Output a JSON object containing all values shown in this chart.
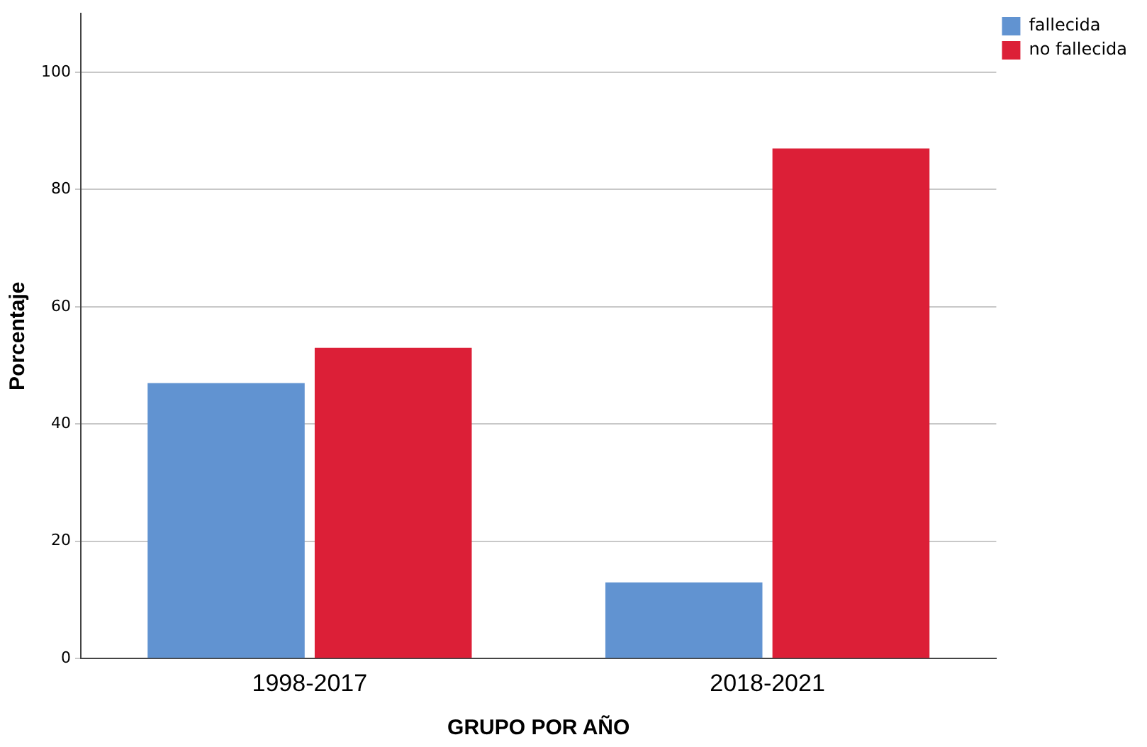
{
  "chart_data": {
    "type": "bar",
    "xlabel": "GRUPO POR AÑO",
    "ylabel": "Porcentaje",
    "categories": [
      "1998-2017",
      "2018-2021"
    ],
    "series": [
      {
        "name": "fallecida",
        "color": "#6193d1",
        "values": [
          47,
          13
        ]
      },
      {
        "name": "no fallecida",
        "color": "#dc1f37",
        "values": [
          53,
          87
        ]
      }
    ],
    "ylim": [
      0,
      110
    ],
    "yticks": [
      0,
      20,
      40,
      60,
      80,
      100
    ],
    "grid": "y",
    "legend": "top right"
  }
}
